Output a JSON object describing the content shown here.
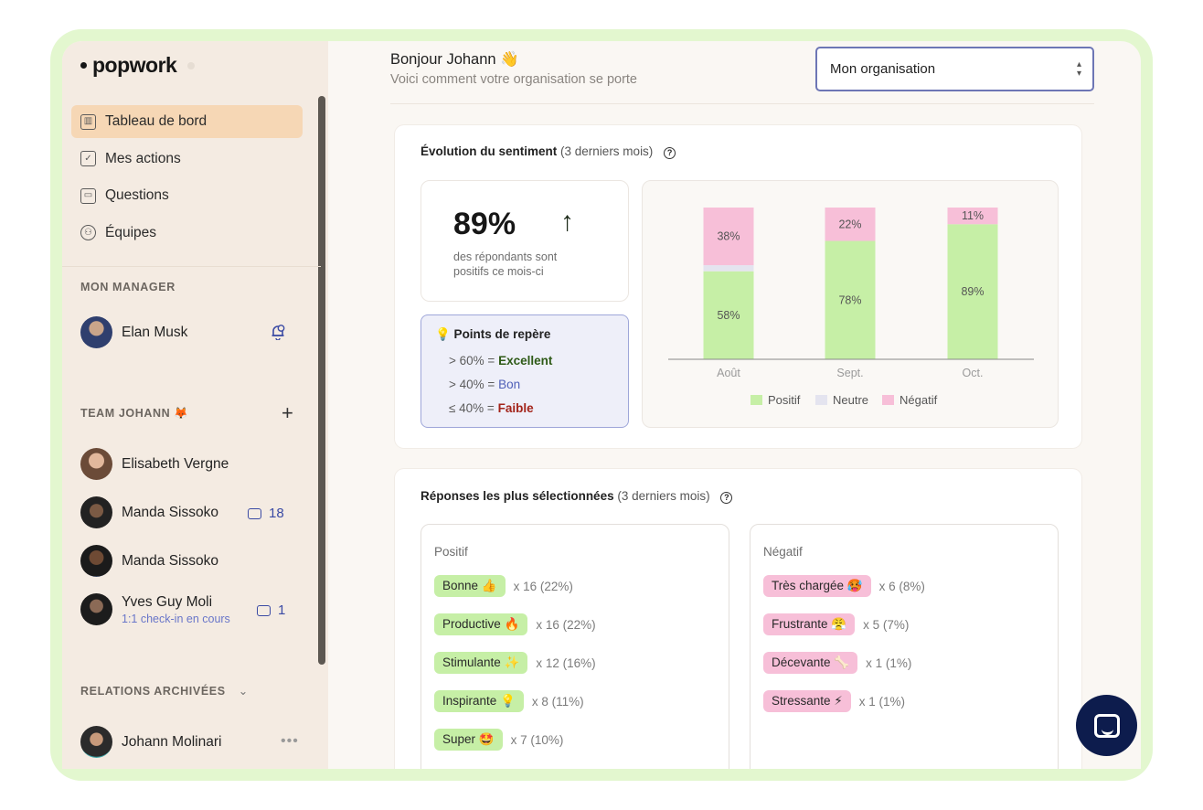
{
  "sidebar": {
    "logo": "popwork",
    "nav": [
      {
        "label": "Tableau de bord",
        "icon": "dashboard-icon",
        "active": true
      },
      {
        "label": "Mes actions",
        "icon": "checkbox-icon",
        "active": false
      },
      {
        "label": "Questions",
        "icon": "calendar-icon",
        "active": false
      },
      {
        "label": "Équipes",
        "icon": "team-icon",
        "active": false
      }
    ],
    "manager_label": "MON MANAGER",
    "manager": {
      "name": "Elan Musk",
      "icon": "bell-clock-icon"
    },
    "team_label": "TEAM JOHANN 🦊",
    "team_add_icon": "plus-icon",
    "team": [
      {
        "name": "Elisabeth Vergne",
        "sub": "",
        "count": ""
      },
      {
        "name": "Manda Sissoko",
        "sub": "",
        "count": "18"
      },
      {
        "name": "Manda Sissoko",
        "sub": "",
        "count": ""
      },
      {
        "name": "Yves Guy Moli",
        "sub": "1:1 check-in en cours",
        "count": "1"
      }
    ],
    "archived_label": "RELATIONS ARCHIVÉES",
    "archived": [
      {
        "name": "Johann Molinari",
        "icon": "more-icon"
      }
    ]
  },
  "header": {
    "greeting": "Bonjour Johann 👋",
    "subtitle": "Voici comment votre organisation se porte",
    "select_value": "Mon organisation"
  },
  "sentiment": {
    "title": "Évolution du sentiment",
    "title_suffix": "(3 derniers mois)",
    "kpi_value": "89%",
    "kpi_trend": "↑",
    "kpi_text": "des répondants sont positifs ce mois-ci",
    "bench_title": "💡 Points de repère",
    "bench": [
      {
        "prefix": "> 60% =",
        "label": "Excellent",
        "color": "#2e5a17"
      },
      {
        "prefix": "> 40% =",
        "label": "Bon",
        "color": "#5060b8"
      },
      {
        "prefix": "≤ 40% =",
        "label": "Faible",
        "color": "#a3241a"
      }
    ]
  },
  "chart_data": {
    "type": "bar",
    "stacked": true,
    "categories": [
      "Août",
      "Sept.",
      "Oct."
    ],
    "series": [
      {
        "name": "Positif",
        "values": [
          58,
          78,
          89
        ],
        "color": "#c6efa6"
      },
      {
        "name": "Neutre",
        "values": [
          4,
          0,
          0
        ],
        "color": "#e4e4ef"
      },
      {
        "name": "Négatif",
        "values": [
          38,
          22,
          11
        ],
        "color": "#f7bfd8"
      }
    ],
    "ylim": [
      0,
      100
    ],
    "legend": "bottom",
    "grid": false
  },
  "responses": {
    "title": "Réponses les plus sélectionnées",
    "title_suffix": "(3 derniers mois)",
    "positive_label": "Positif",
    "negative_label": "Négatif",
    "positive": [
      {
        "label": "Bonne 👍",
        "count": "x 16 (22%)"
      },
      {
        "label": "Productive 🔥",
        "count": "x 16 (22%)"
      },
      {
        "label": "Stimulante ✨",
        "count": "x 12 (16%)"
      },
      {
        "label": "Inspirante 💡",
        "count": "x 8 (11%)"
      },
      {
        "label": "Super 🤩",
        "count": "x 7 (10%)"
      }
    ],
    "negative": [
      {
        "label": "Très chargée 🥵",
        "count": "x 6 (8%)"
      },
      {
        "label": "Frustrante 😤",
        "count": "x 5 (7%)"
      },
      {
        "label": "Décevante 🦴",
        "count": "x 1 (1%)"
      },
      {
        "label": "Stressante ⚡",
        "count": "x 1 (1%)"
      }
    ]
  },
  "chat_widget_icon": "chat-icon"
}
